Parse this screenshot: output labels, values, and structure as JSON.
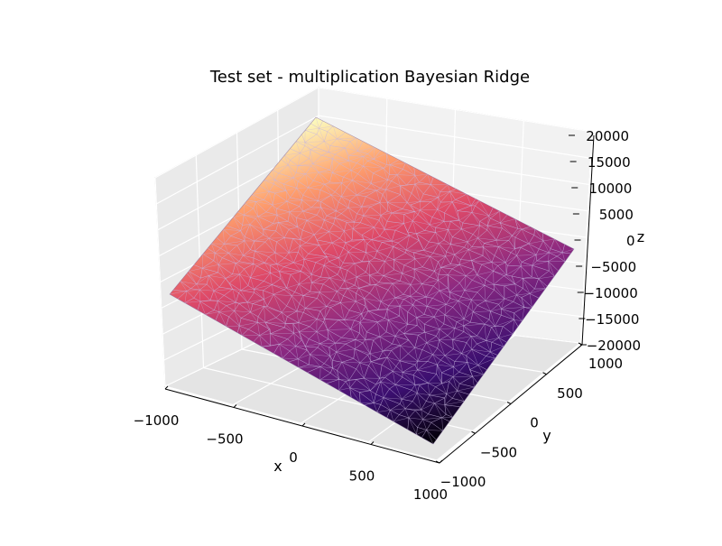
{
  "chart_data": {
    "type": "surface3d",
    "title": "Test set - multiplication Bayesian Ridge",
    "xlabel": "x",
    "ylabel": "y",
    "zlabel": "z",
    "xlim": [
      -1000,
      1000
    ],
    "ylim": [
      -1000,
      1000
    ],
    "zlim": [
      -20000,
      20000
    ],
    "x_ticks": [
      -1000,
      -500,
      0,
      500,
      1000
    ],
    "x_tick_labels": [
      "−1000",
      "−500",
      "0",
      "500",
      "1000"
    ],
    "y_ticks": [
      -1000,
      -500,
      0,
      500,
      1000
    ],
    "y_tick_labels": [
      "−1000",
      "−500",
      "0",
      "500",
      "1000"
    ],
    "z_ticks": [
      -20000,
      -15000,
      -10000,
      -5000,
      0,
      5000,
      10000,
      15000,
      20000
    ],
    "z_tick_labels": [
      "−20000",
      "−15000",
      "−10000",
      "−5000",
      "0",
      "5000",
      "10000",
      "15000",
      "20000"
    ],
    "corners": [
      {
        "x": -1000,
        "y": 1000,
        "z": 19500
      },
      {
        "x": 1000,
        "y": 1000,
        "z": 0
      },
      {
        "x": -1000,
        "y": -1000,
        "z": 0
      },
      {
        "x": 1000,
        "y": -1000,
        "z": -19500
      }
    ],
    "grid": true,
    "colormap": "magma",
    "colormap_stops": [
      "#000004",
      "#3b0f70",
      "#8c2981",
      "#de4968",
      "#fe9f6d",
      "#fcfdbf"
    ],
    "mesh_line_color": "#c8b8e0"
  }
}
